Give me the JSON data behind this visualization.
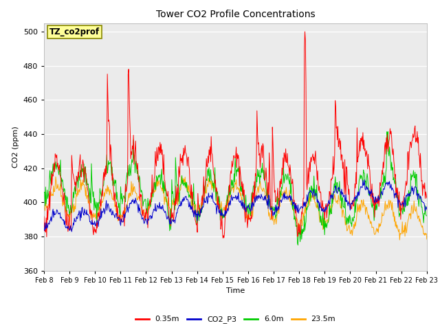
{
  "title": "Tower CO2 Profile Concentrations",
  "ylabel": "CO2 (ppm)",
  "xlabel": "Time",
  "ylim": [
    360,
    505
  ],
  "yticks": [
    360,
    380,
    400,
    420,
    440,
    460,
    480,
    500
  ],
  "xtick_labels": [
    "Feb 8",
    "Feb 9",
    "Feb 10",
    "Feb 11",
    "Feb 12",
    "Feb 13",
    "Feb 14",
    "Feb 15",
    "Feb 16",
    "Feb 17",
    "Feb 18",
    "Feb 19",
    "Feb 20",
    "Feb 21",
    "Feb 22",
    "Feb 23"
  ],
  "colors": {
    "0.35m": "#ff0000",
    "CO2_P3": "#0000cc",
    "6.0m": "#00cc00",
    "23.5m": "#ffa500"
  },
  "legend_labels": [
    "0.35m",
    "CO2_P3",
    "6.0m",
    "23.5m"
  ],
  "annotation_text": "TZ_co2prof",
  "annotation_bg": "#ffff99",
  "annotation_edge": "#888800",
  "plot_bg": "#ebebeb",
  "fig_bg": "#ffffff",
  "linewidth": 0.7,
  "n_days": 15,
  "pts_per_day": 48,
  "title_fontsize": 10,
  "label_fontsize": 8,
  "tick_fontsize": 7,
  "legend_fontsize": 8
}
